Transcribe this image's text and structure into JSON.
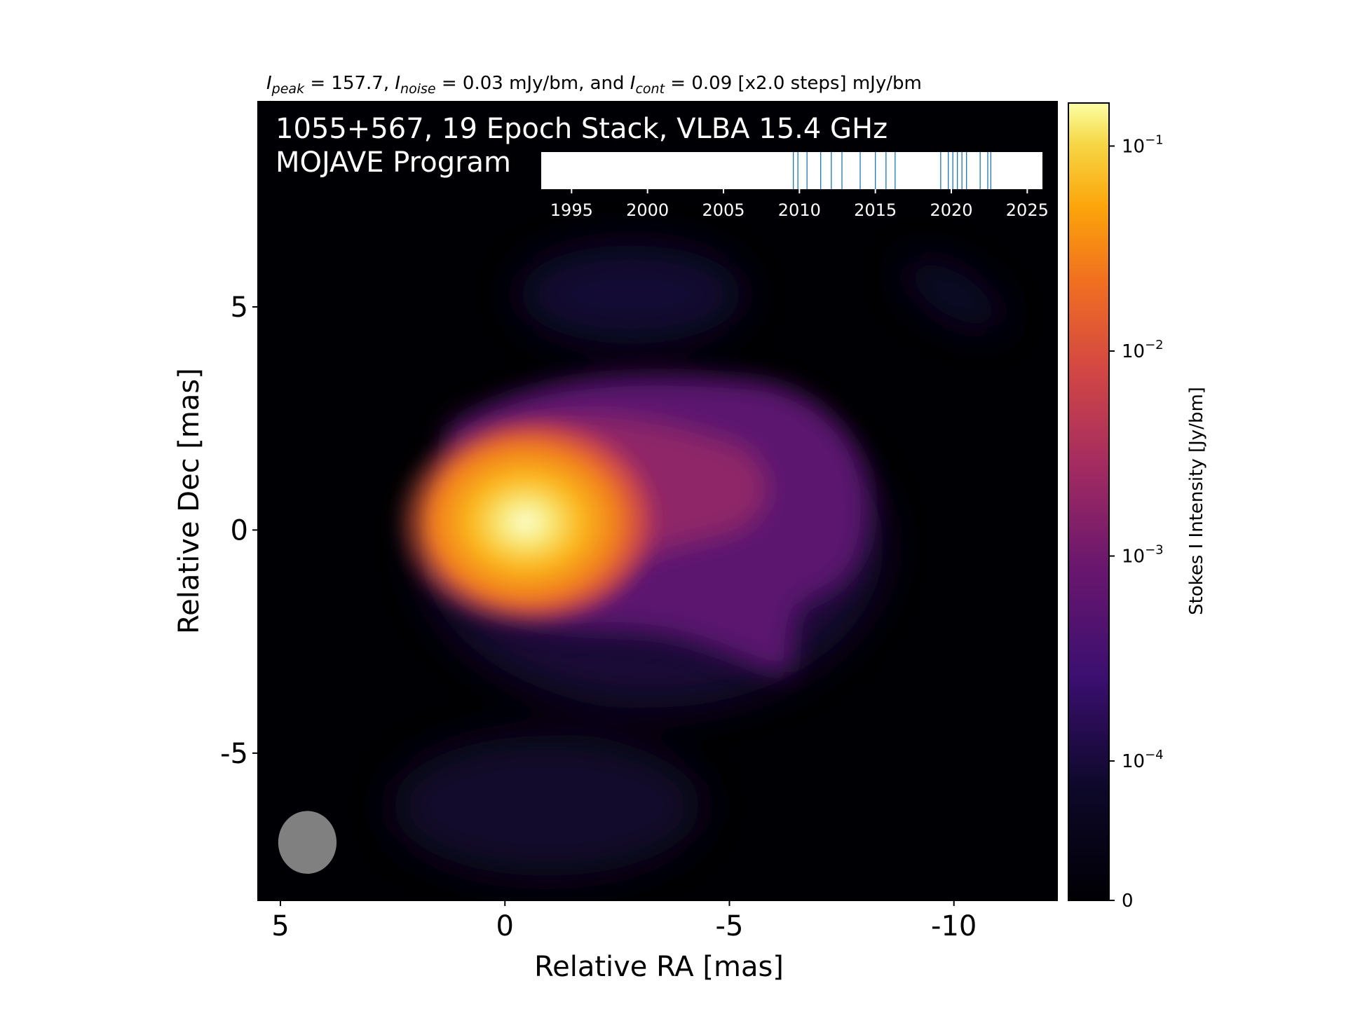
{
  "chart_data": {
    "type": "heatmap",
    "header": {
      "text": "I_peak = 157.7, I_noise = 0.03 mJy/bm, and I_cont = 0.09 [x2.0 steps] mJy/bm",
      "peak_value": "157.7",
      "noise_value": "0.03 mJy/bm",
      "contour_value": "0.09 [x2.0 steps] mJy/bm"
    },
    "title_line1": "1055+567, 19 Epoch Stack, VLBA 15.4 GHz",
    "title_line2": "MOJAVE Program",
    "xlabel": "Relative RA [mas]",
    "ylabel": "Relative Dec [mas]",
    "xlim": [
      5.5,
      -12.3
    ],
    "ylim": [
      -8.3,
      9.6
    ],
    "x_ticks": [
      5,
      0,
      -5,
      -10
    ],
    "x_tick_labels": [
      "5",
      "0",
      "-5",
      "-10"
    ],
    "y_ticks": [
      5,
      0,
      -5
    ],
    "y_tick_labels": [
      "5",
      "0",
      "-5"
    ],
    "beam": {
      "ra": 4.4,
      "dec": -7.0,
      "major_mas": 1.4,
      "minor_mas": 1.3,
      "color": "#808080"
    },
    "peak_position": {
      "ra": 0.1,
      "dec": 0.0
    },
    "contour_color": "#ffffff",
    "colormap": "inferno",
    "colorbar": {
      "label": "Stokes I Intensity [Jy/bm]",
      "scale": "log",
      "ticks": [
        {
          "base": "10",
          "exp": "−1",
          "value": 0.1
        },
        {
          "base": "10",
          "exp": "−2",
          "value": 0.01
        },
        {
          "base": "10",
          "exp": "−3",
          "value": 0.001
        },
        {
          "base": "10",
          "exp": "−4",
          "value": 0.0001
        },
        {
          "base": "0",
          "exp": "",
          "value": 0
        }
      ]
    },
    "epochs_timeline": {
      "xlim": [
        1993,
        2026
      ],
      "tick_labels": [
        "1995",
        "2000",
        "2005",
        "2010",
        "2015",
        "2020",
        "2025"
      ],
      "ticks": [
        1995,
        2000,
        2005,
        2010,
        2015,
        2020,
        2025
      ],
      "epochs": [
        2009.6,
        2009.9,
        2010.5,
        2011.4,
        2012.1,
        2012.8,
        2014.0,
        2015.0,
        2015.7,
        2016.3,
        2019.3,
        2019.8,
        2020.1,
        2020.4,
        2020.7,
        2021.0,
        2021.9,
        2022.4,
        2022.6
      ],
      "line_color": "#1f77b4"
    }
  }
}
